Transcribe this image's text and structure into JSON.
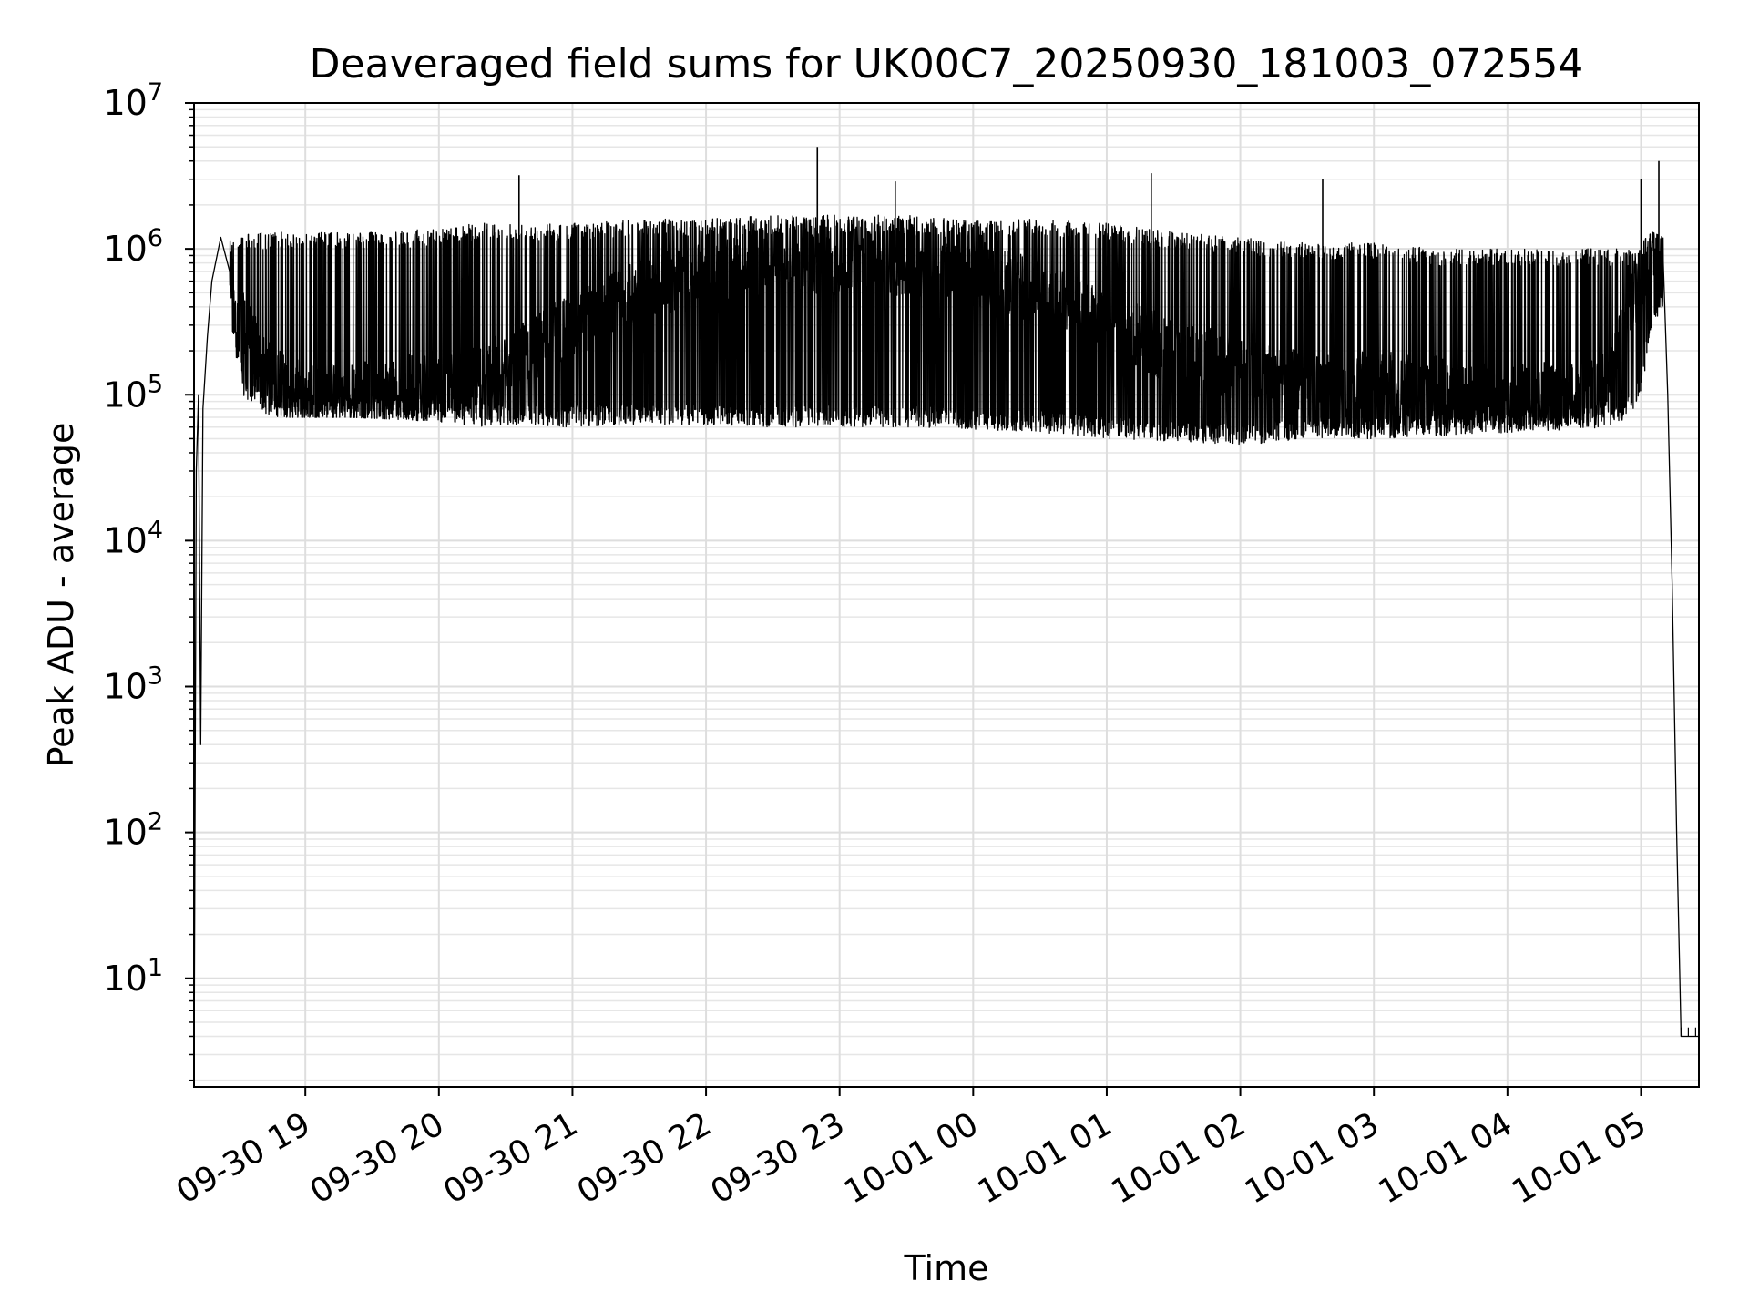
{
  "chart_data": {
    "type": "line",
    "title": "Deaveraged field sums for UK00C7_20250930_181003_072554",
    "xlabel": "Time",
    "ylabel": "Peak ADU - average",
    "yscale": "log",
    "ylim": [
      1.8,
      10000000
    ],
    "xlim": [
      "2025-09-30 18:10",
      "2025-10-01 05:26"
    ],
    "grid": "on (major and minor, light gray)",
    "legend": "none",
    "line_color": "#000000",
    "y_ticks": [
      {
        "base": "10",
        "exp": "1",
        "value": 10
      },
      {
        "base": "10",
        "exp": "2",
        "value": 100
      },
      {
        "base": "10",
        "exp": "3",
        "value": 1000
      },
      {
        "base": "10",
        "exp": "4",
        "value": 10000
      },
      {
        "base": "10",
        "exp": "5",
        "value": 100000
      },
      {
        "base": "10",
        "exp": "6",
        "value": 1000000
      },
      {
        "base": "10",
        "exp": "7",
        "value": 10000000
      }
    ],
    "x_ticks": [
      {
        "label": "09-30 19",
        "value": "2025-09-30 19:00"
      },
      {
        "label": "09-30 20",
        "value": "2025-09-30 20:00"
      },
      {
        "label": "09-30 21",
        "value": "2025-09-30 21:00"
      },
      {
        "label": "09-30 22",
        "value": "2025-09-30 22:00"
      },
      {
        "label": "09-30 23",
        "value": "2025-09-30 23:00"
      },
      {
        "label": "10-01 00",
        "value": "2025-10-01 00:00"
      },
      {
        "label": "10-01 01",
        "value": "2025-10-01 01:00"
      },
      {
        "label": "10-01 02",
        "value": "2025-10-01 02:00"
      },
      {
        "label": "10-01 03",
        "value": "2025-10-01 03:00"
      },
      {
        "label": "10-01 04",
        "value": "2025-10-01 04:00"
      },
      {
        "label": "10-01 05",
        "value": "2025-10-01 05:00"
      }
    ],
    "series": [
      {
        "x": [
          "2025-09-30 18:10",
          "2025-09-30 18:11",
          "2025-09-30 18:12",
          "2025-09-30 18:13",
          "2025-09-30 18:14",
          "2025-09-30 18:16",
          "2025-09-30 18:18",
          "2025-09-30 18:22",
          "2025-09-30 18:26",
          "2025-09-30 18:30",
          "2025-09-30 18:32",
          "2025-09-30 18:35",
          "2025-09-30 18:38",
          "2025-09-30 18:42",
          "2025-09-30 18:45",
          "2025-09-30 18:50",
          "2025-09-30 18:55",
          "2025-09-30 19:00",
          "2025-09-30 19:20",
          "2025-09-30 19:40",
          "2025-09-30 20:00",
          "2025-09-30 20:20",
          "2025-09-30 20:40",
          "2025-09-30 21:00",
          "2025-09-30 21:30",
          "2025-09-30 22:00",
          "2025-09-30 22:30",
          "2025-09-30 23:00",
          "2025-09-30 23:30",
          "2025-10-01 00:00",
          "2025-10-01 00:30",
          "2025-10-01 01:00",
          "2025-10-01 01:30",
          "2025-10-01 02:00",
          "2025-10-01 02:30",
          "2025-10-01 03:00",
          "2025-10-01 03:30",
          "2025-10-01 04:00",
          "2025-10-01 04:30",
          "2025-10-01 04:45",
          "2025-10-01 04:55",
          "2025-10-01 05:00",
          "2025-10-01 05:05",
          "2025-10-01 05:10",
          "2025-10-01 05:12",
          "2025-10-01 05:14",
          "2025-10-01 05:16",
          "2025-10-01 05:18",
          "2025-10-01 05:26"
        ],
        "y": [
          1.8,
          30000,
          100000,
          400,
          80000,
          250000,
          600000,
          1200000,
          700000,
          400000,
          300000,
          250000,
          200000,
          150000,
          130000,
          120000,
          110000,
          100000,
          100000,
          110000,
          120000,
          140000,
          200000,
          300000,
          500000,
          700000,
          800000,
          800000,
          800000,
          700000,
          500000,
          300000,
          200000,
          150000,
          130000,
          120000,
          110000,
          100000,
          100000,
          120000,
          400000,
          600000,
          1100000,
          800000,
          100000,
          5000,
          100,
          4,
          4
        ],
        "envelope_high": [
          1.8,
          30000,
          100000,
          400,
          80000,
          250000,
          600000,
          1200000,
          1200000,
          1200000,
          1300000,
          1300000,
          1300000,
          1300000,
          1300000,
          1300000,
          1300000,
          1300000,
          1300000,
          1300000,
          1400000,
          1500000,
          1500000,
          1500000,
          1600000,
          1600000,
          1700000,
          1700000,
          1700000,
          1600000,
          1600000,
          1500000,
          1300000,
          1200000,
          1100000,
          1100000,
          1000000,
          1000000,
          1000000,
          1000000,
          1000000,
          1100000,
          1300000,
          1200000,
          100000,
          5000,
          100,
          4,
          4
        ],
        "envelope_low": [
          1.8,
          30000,
          100000,
          400,
          80000,
          250000,
          600000,
          1100000,
          300000,
          150000,
          100000,
          90000,
          80000,
          75000,
          70000,
          70000,
          70000,
          70000,
          70000,
          68000,
          65000,
          60000,
          60000,
          60000,
          62000,
          62000,
          60000,
          60000,
          60000,
          58000,
          55000,
          50000,
          48000,
          45000,
          50000,
          50000,
          52000,
          55000,
          58000,
          60000,
          70000,
          100000,
          300000,
          400000,
          100000,
          5000,
          100,
          4,
          4
        ],
        "spikes": [
          {
            "x": "2025-09-30 20:36",
            "y": 3200000
          },
          {
            "x": "2025-09-30 22:50",
            "y": 5000000
          },
          {
            "x": "2025-09-30 23:25",
            "y": 2900000
          },
          {
            "x": "2025-10-01 01:20",
            "y": 3300000
          },
          {
            "x": "2025-10-01 02:37",
            "y": 3000000
          },
          {
            "x": "2025-10-01 05:00",
            "y": 3000000
          },
          {
            "x": "2025-10-01 05:08",
            "y": 4000000
          }
        ]
      }
    ]
  }
}
